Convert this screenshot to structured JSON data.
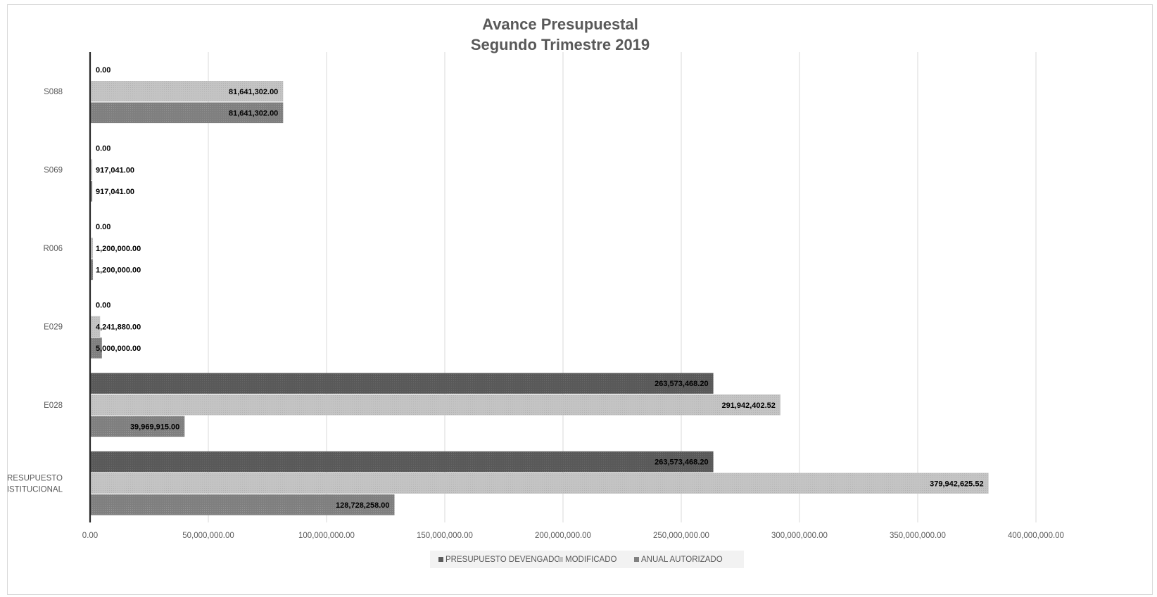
{
  "chart_data": {
    "type": "bar",
    "orientation": "horizontal",
    "title": "Avance Presupuestal",
    "subtitle": "Segundo Trimestre 2019",
    "categories": [
      "PRESUPUESTO INSTITUCIONAL",
      "E028",
      "E029",
      "R006",
      "S069",
      "S088"
    ],
    "category_lines": [
      [
        "PRESUPUESTO",
        "INSTITUCIONAL"
      ],
      [
        "E028"
      ],
      [
        "E029"
      ],
      [
        "R006"
      ],
      [
        "S069"
      ],
      [
        "S088"
      ]
    ],
    "series": [
      {
        "name": "PRESUPUESTO DEVENGADO",
        "color": "#595959",
        "values": [
          263573468.2,
          263573468.2,
          0,
          0,
          0,
          0
        ],
        "labels": [
          "263,573,468.20",
          "263,573,468.20",
          "0.00",
          "0.00",
          "0.00",
          "0.00"
        ]
      },
      {
        "name": "MODIFICADO",
        "color": "#bfbfbf",
        "values": [
          379942625.52,
          291942402.52,
          4241880.0,
          1200000.0,
          917041.0,
          81641302.0
        ],
        "labels": [
          "379,942,625.52",
          "291,942,402.52",
          "4,241,880.00",
          "1,200,000.00",
          "917,041.00",
          "81,641,302.00"
        ]
      },
      {
        "name": "ANUAL AUTORIZADO",
        "color": "#7f7f7f",
        "values": [
          128728258.0,
          39969915.0,
          5000000.0,
          1200000.0,
          917041.0,
          81641302.0
        ],
        "labels": [
          "128,728,258.00",
          "39,969,915.00",
          "5,000,000.00",
          "1,200,000.00",
          "917,041.00",
          "81,641,302.00"
        ]
      }
    ],
    "xlim": [
      0,
      400000000
    ],
    "x_ticks": [
      0,
      50000000,
      100000000,
      150000000,
      200000000,
      250000000,
      300000000,
      350000000,
      400000000
    ],
    "x_tick_labels": [
      "0.00",
      "50,000,000.00",
      "100,000,000.00",
      "150,000,000.00",
      "200,000,000.00",
      "250,000,000.00",
      "300,000,000.00",
      "350,000,000.00",
      "400,000,000.00"
    ],
    "grid": true,
    "legend_position": "bottom"
  }
}
